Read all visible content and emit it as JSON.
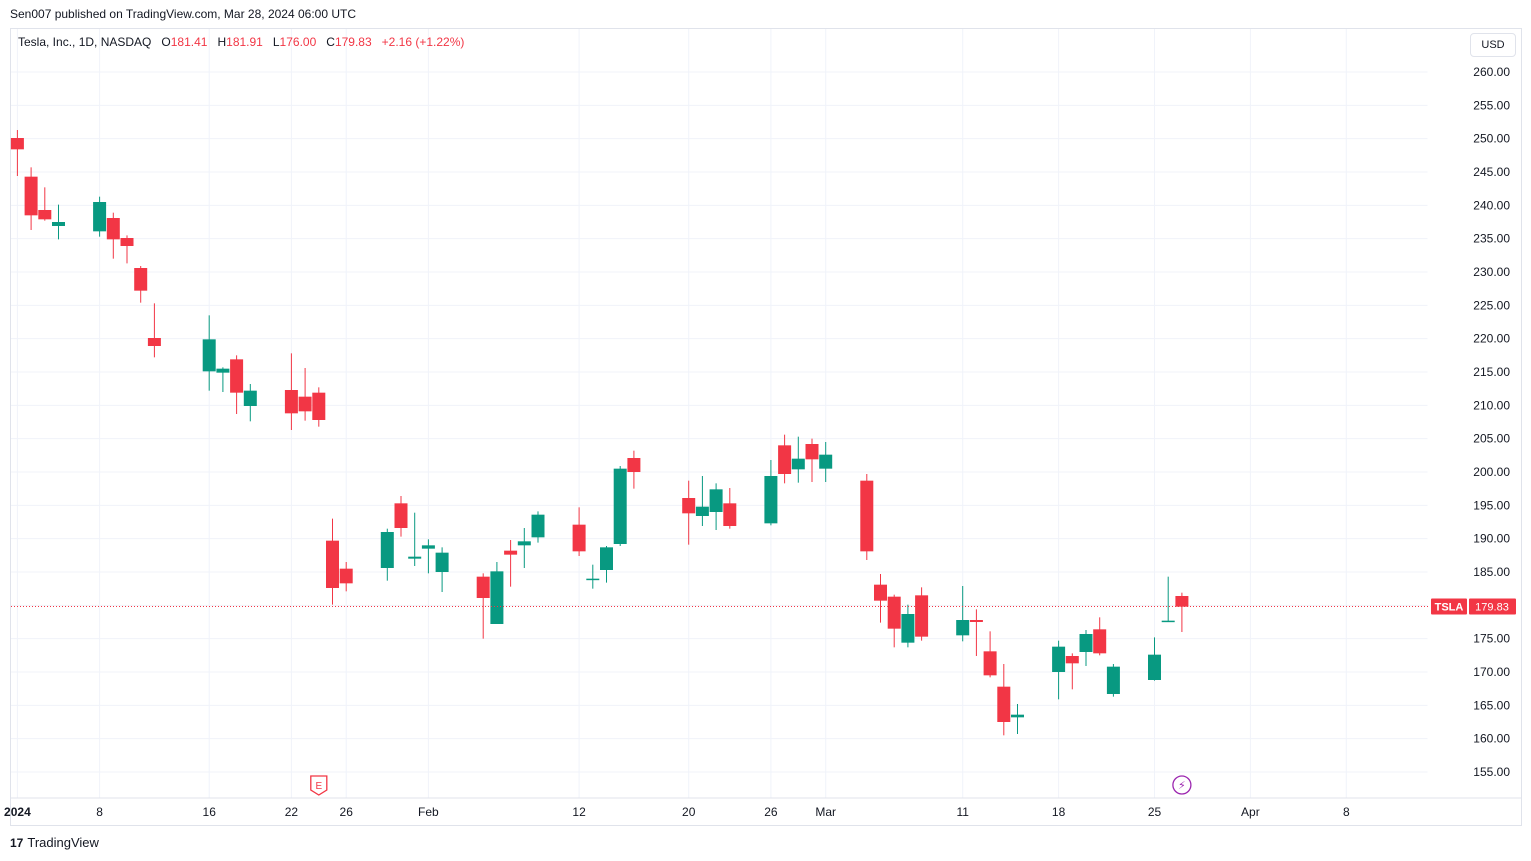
{
  "published": "Sen007 published on TradingView.com, Mar 28, 2024 06:00 UTC",
  "legend": {
    "symbol": "Tesla, Inc., 1D, NASDAQ",
    "o_label": "O",
    "o_value": "181.41",
    "h_label": "H",
    "h_value": "181.91",
    "l_label": "L",
    "l_value": "176.00",
    "c_label": "C",
    "c_value": "179.83",
    "change": "+2.16 (+1.22%)"
  },
  "currency_button": "USD",
  "price_tag": {
    "symbol": "TSLA",
    "price": "179.83",
    "price_num": 179.83
  },
  "footer": {
    "logo_mark": "17",
    "brand": "TradingView"
  },
  "colors": {
    "up": "#089981",
    "down": "#f23645",
    "grid": "#f0f3fa",
    "axis_text": "#131722"
  },
  "chart_data": {
    "type": "candlestick",
    "y_ticks": [
      "260.00",
      "255.00",
      "250.00",
      "245.00",
      "240.00",
      "235.00",
      "230.00",
      "225.00",
      "220.00",
      "215.00",
      "210.00",
      "205.00",
      "200.00",
      "195.00",
      "190.00",
      "185.00",
      "180.00",
      "175.00",
      "170.00",
      "165.00",
      "160.00",
      "155.00"
    ],
    "y_tick_values": [
      260,
      255,
      250,
      245,
      240,
      235,
      230,
      225,
      220,
      215,
      210,
      205,
      200,
      195,
      190,
      185,
      180,
      175,
      170,
      165,
      160,
      155
    ],
    "x_ticks": [
      {
        "label": "2024",
        "date": "2024-01-02",
        "bold": true
      },
      {
        "label": "8",
        "date": "2024-01-08"
      },
      {
        "label": "16",
        "date": "2024-01-16"
      },
      {
        "label": "22",
        "date": "2024-01-22"
      },
      {
        "label": "26",
        "date": "2024-01-26"
      },
      {
        "label": "Feb",
        "date": "2024-02-01"
      },
      {
        "label": "12",
        "date": "2024-02-12"
      },
      {
        "label": "20",
        "date": "2024-02-20"
      },
      {
        "label": "26",
        "date": "2024-02-26"
      },
      {
        "label": "Mar",
        "date": "2024-03-01"
      },
      {
        "label": "11",
        "date": "2024-03-11"
      },
      {
        "label": "18",
        "date": "2024-03-18"
      },
      {
        "label": "25",
        "date": "2024-03-25"
      },
      {
        "label": "Apr",
        "date": "2024-04-01"
      },
      {
        "label": "8",
        "date": "2024-04-08"
      }
    ],
    "markers": [
      {
        "type": "earnings",
        "label": "E",
        "date": "2024-01-24"
      },
      {
        "type": "dividend-split",
        "label": "⚡",
        "date": "2024-03-27"
      }
    ],
    "candles": [
      {
        "date": "2024-01-02",
        "o": 250.1,
        "h": 251.3,
        "l": 244.4,
        "c": 248.4
      },
      {
        "date": "2024-01-03",
        "o": 244.3,
        "h": 245.7,
        "l": 236.3,
        "c": 238.5
      },
      {
        "date": "2024-01-04",
        "o": 239.3,
        "h": 242.7,
        "l": 237.7,
        "c": 237.9
      },
      {
        "date": "2024-01-05",
        "o": 236.9,
        "h": 240.1,
        "l": 234.9,
        "c": 237.5
      },
      {
        "date": "2024-01-08",
        "o": 236.1,
        "h": 241.3,
        "l": 235.3,
        "c": 240.5
      },
      {
        "date": "2024-01-09",
        "o": 238.1,
        "h": 238.9,
        "l": 232.0,
        "c": 234.9
      },
      {
        "date": "2024-01-10",
        "o": 235.1,
        "h": 235.5,
        "l": 231.3,
        "c": 233.9
      },
      {
        "date": "2024-01-11",
        "o": 230.6,
        "h": 230.9,
        "l": 225.4,
        "c": 227.2
      },
      {
        "date": "2024-01-12",
        "o": 220.1,
        "h": 225.3,
        "l": 217.2,
        "c": 218.9
      },
      {
        "date": "2024-01-16",
        "o": 215.1,
        "h": 223.5,
        "l": 212.2,
        "c": 219.9
      },
      {
        "date": "2024-01-17",
        "o": 214.9,
        "h": 215.7,
        "l": 212.0,
        "c": 215.5
      },
      {
        "date": "2024-01-18",
        "o": 216.9,
        "h": 217.5,
        "l": 208.7,
        "c": 211.9
      },
      {
        "date": "2024-01-19",
        "o": 209.9,
        "h": 213.2,
        "l": 207.6,
        "c": 212.2
      },
      {
        "date": "2024-01-22",
        "o": 212.3,
        "h": 217.8,
        "l": 206.3,
        "c": 208.8
      },
      {
        "date": "2024-01-23",
        "o": 211.3,
        "h": 215.6,
        "l": 207.7,
        "c": 209.1
      },
      {
        "date": "2024-01-24",
        "o": 211.9,
        "h": 212.7,
        "l": 206.8,
        "c": 207.8
      },
      {
        "date": "2024-01-25",
        "o": 189.7,
        "h": 193.0,
        "l": 180.1,
        "c": 182.6
      },
      {
        "date": "2024-01-26",
        "o": 185.5,
        "h": 186.5,
        "l": 182.1,
        "c": 183.3
      },
      {
        "date": "2024-01-29",
        "o": 185.6,
        "h": 191.5,
        "l": 183.7,
        "c": 191.0
      },
      {
        "date": "2024-01-30",
        "o": 195.3,
        "h": 196.4,
        "l": 190.3,
        "c": 191.6
      },
      {
        "date": "2024-01-31",
        "o": 187.0,
        "h": 193.9,
        "l": 185.9,
        "c": 187.3
      },
      {
        "date": "2024-02-01",
        "o": 188.5,
        "h": 189.9,
        "l": 184.8,
        "c": 189.0
      },
      {
        "date": "2024-02-02",
        "o": 185.0,
        "h": 188.7,
        "l": 182.0,
        "c": 187.9
      },
      {
        "date": "2024-02-05",
        "o": 184.3,
        "h": 184.8,
        "l": 175.0,
        "c": 181.1
      },
      {
        "date": "2024-02-06",
        "o": 177.2,
        "h": 186.5,
        "l": 177.2,
        "c": 185.1
      },
      {
        "date": "2024-02-07",
        "o": 188.2,
        "h": 189.8,
        "l": 182.8,
        "c": 187.6
      },
      {
        "date": "2024-02-08",
        "o": 189.0,
        "h": 191.6,
        "l": 185.6,
        "c": 189.6
      },
      {
        "date": "2024-02-09",
        "o": 190.2,
        "h": 194.1,
        "l": 189.4,
        "c": 193.6
      },
      {
        "date": "2024-02-12",
        "o": 192.1,
        "h": 194.7,
        "l": 187.4,
        "c": 188.1
      },
      {
        "date": "2024-02-13",
        "o": 183.9,
        "h": 186.1,
        "l": 182.5,
        "c": 184.0
      },
      {
        "date": "2024-02-14",
        "o": 185.3,
        "h": 188.9,
        "l": 183.4,
        "c": 188.7
      },
      {
        "date": "2024-02-15",
        "o": 189.2,
        "h": 200.9,
        "l": 188.9,
        "c": 200.5
      },
      {
        "date": "2024-02-16",
        "o": 202.1,
        "h": 203.2,
        "l": 197.5,
        "c": 200.0
      },
      {
        "date": "2024-02-20",
        "o": 196.1,
        "h": 198.7,
        "l": 189.1,
        "c": 193.8
      },
      {
        "date": "2024-02-21",
        "o": 193.4,
        "h": 199.4,
        "l": 191.9,
        "c": 194.8
      },
      {
        "date": "2024-02-22",
        "o": 194.0,
        "h": 198.3,
        "l": 191.3,
        "c": 197.4
      },
      {
        "date": "2024-02-23",
        "o": 195.3,
        "h": 197.6,
        "l": 191.5,
        "c": 191.9
      },
      {
        "date": "2024-02-26",
        "o": 192.3,
        "h": 201.8,
        "l": 192.0,
        "c": 199.4
      },
      {
        "date": "2024-02-27",
        "o": 204.0,
        "h": 205.6,
        "l": 198.3,
        "c": 199.7
      },
      {
        "date": "2024-02-28",
        "o": 200.4,
        "h": 205.3,
        "l": 198.4,
        "c": 202.0
      },
      {
        "date": "2024-02-29",
        "o": 204.2,
        "h": 205.0,
        "l": 198.5,
        "c": 201.9
      },
      {
        "date": "2024-03-01",
        "o": 200.5,
        "h": 204.5,
        "l": 198.5,
        "c": 202.6
      },
      {
        "date": "2024-03-04",
        "o": 198.7,
        "h": 199.7,
        "l": 186.8,
        "c": 188.1
      },
      {
        "date": "2024-03-05",
        "o": 183.1,
        "h": 184.7,
        "l": 177.4,
        "c": 180.7
      },
      {
        "date": "2024-03-06",
        "o": 181.3,
        "h": 181.6,
        "l": 173.7,
        "c": 176.5
      },
      {
        "date": "2024-03-07",
        "o": 174.4,
        "h": 180.1,
        "l": 173.7,
        "c": 178.7
      },
      {
        "date": "2024-03-08",
        "o": 181.5,
        "h": 182.7,
        "l": 174.7,
        "c": 175.3
      },
      {
        "date": "2024-03-11",
        "o": 175.5,
        "h": 182.9,
        "l": 174.6,
        "c": 177.8
      },
      {
        "date": "2024-03-12",
        "o": 177.8,
        "h": 179.4,
        "l": 172.4,
        "c": 177.5
      },
      {
        "date": "2024-03-13",
        "o": 173.1,
        "h": 176.1,
        "l": 169.2,
        "c": 169.5
      },
      {
        "date": "2024-03-14",
        "o": 167.8,
        "h": 171.2,
        "l": 160.5,
        "c": 162.5
      },
      {
        "date": "2024-03-15",
        "o": 163.2,
        "h": 165.2,
        "l": 160.7,
        "c": 163.6
      },
      {
        "date": "2024-03-18",
        "o": 170.0,
        "h": 174.7,
        "l": 165.9,
        "c": 173.8
      },
      {
        "date": "2024-03-19",
        "o": 172.4,
        "h": 172.8,
        "l": 167.4,
        "c": 171.3
      },
      {
        "date": "2024-03-20",
        "o": 173.0,
        "h": 176.3,
        "l": 170.9,
        "c": 175.7
      },
      {
        "date": "2024-03-21",
        "o": 176.4,
        "h": 178.2,
        "l": 172.5,
        "c": 172.8
      },
      {
        "date": "2024-03-22",
        "o": 166.7,
        "h": 171.2,
        "l": 166.3,
        "c": 170.8
      },
      {
        "date": "2024-03-25",
        "o": 168.8,
        "h": 175.2,
        "l": 168.7,
        "c": 172.6
      },
      {
        "date": "2024-03-26",
        "o": 177.7,
        "h": 184.3,
        "l": 177.5,
        "c": 177.7
      },
      {
        "date": "2024-03-27",
        "o": 181.4,
        "h": 181.9,
        "l": 176.0,
        "c": 179.8
      }
    ]
  }
}
